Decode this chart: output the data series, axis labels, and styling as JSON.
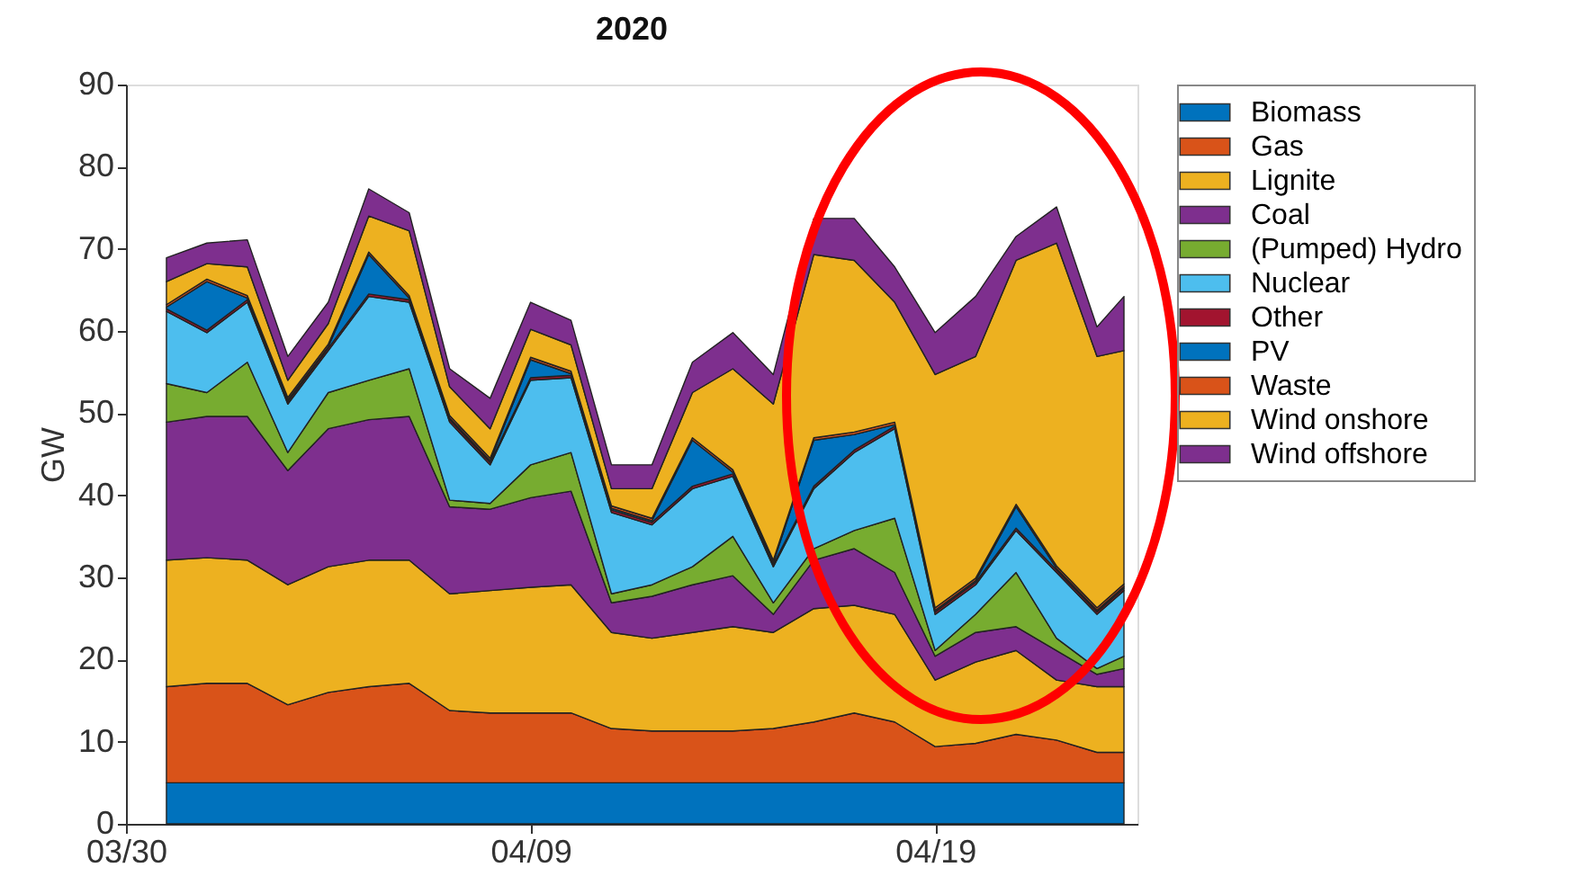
{
  "chart_data": {
    "type": "area",
    "title": "2020",
    "ylabel": "GW",
    "stacked": true,
    "legend": "top right",
    "grid": false,
    "x": [
      "2020-03-31",
      "2020-04-01",
      "2020-04-02",
      "2020-04-03",
      "2020-04-04",
      "2020-04-05",
      "2020-04-06",
      "2020-04-07",
      "2020-04-08",
      "2020-04-09",
      "2020-04-10",
      "2020-04-11",
      "2020-04-12",
      "2020-04-13",
      "2020-04-14",
      "2020-04-15",
      "2020-04-16",
      "2020-04-17",
      "2020-04-18",
      "2020-04-19",
      "2020-04-20",
      "2020-04-21",
      "2020-04-22",
      "2020-04-23",
      "2020-04-23T16:00"
    ],
    "xlim": [
      "2020-03-30",
      "2020-04-24"
    ],
    "xticks": [
      {
        "value": "2020-03-30",
        "label": "03/30"
      },
      {
        "value": "2020-04-09",
        "label": "04/09"
      },
      {
        "value": "2020-04-19",
        "label": "04/19"
      }
    ],
    "ylim": [
      0,
      90
    ],
    "yticks": [
      0,
      10,
      20,
      30,
      40,
      50,
      60,
      70,
      80,
      90
    ],
    "series": [
      {
        "name": "Biomass",
        "color": "#0072bd",
        "values": [
          5,
          5,
          5,
          5,
          5,
          5,
          5,
          5,
          5,
          5,
          5,
          5,
          5,
          5,
          5,
          5,
          5,
          5,
          5,
          5,
          5,
          5,
          5,
          5,
          5
        ]
      },
      {
        "name": "Gas",
        "color": "#d95319",
        "values": [
          11.7,
          12.1,
          12.1,
          9.5,
          11.0,
          11.7,
          12.1,
          8.8,
          8.5,
          8.5,
          8.5,
          6.6,
          6.3,
          6.3,
          6.3,
          6.6,
          7.4,
          8.5,
          7.4,
          4.4,
          4.8,
          5.9,
          5.2,
          3.7,
          3.7
        ]
      },
      {
        "name": "Lignite",
        "color": "#edb120",
        "values": [
          15.4,
          15.3,
          15.0,
          14.6,
          15.3,
          15.4,
          15.0,
          14.2,
          14.9,
          15.3,
          15.6,
          11.7,
          11.3,
          12.0,
          12.7,
          11.7,
          13.8,
          13.1,
          13.1,
          8.1,
          9.9,
          10.2,
          7.3,
          8.0,
          8.0
        ]
      },
      {
        "name": "Coal",
        "color": "#7e2f8e",
        "values": [
          16.8,
          17.2,
          17.5,
          13.9,
          16.8,
          17.1,
          17.5,
          10.6,
          9.9,
          10.9,
          11.4,
          3.6,
          5.1,
          5.8,
          6.2,
          2.2,
          5.9,
          6.9,
          5.1,
          2.9,
          3.6,
          2.9,
          3.6,
          1.5,
          2.2
        ]
      },
      {
        "name": "(Pumped) Hydro",
        "color": "#77ac30",
        "values": [
          4.7,
          2.9,
          6.6,
          2.2,
          4.4,
          4.8,
          5.8,
          0.8,
          0.7,
          4.0,
          4.7,
          1.1,
          1.4,
          2.2,
          4.8,
          1.4,
          1.4,
          2.2,
          6.6,
          0.7,
          2.2,
          6.6,
          1.5,
          0.7,
          1.5
        ]
      },
      {
        "name": "Nuclear",
        "color": "#4dbeee",
        "values": [
          8.8,
          7.3,
          7.3,
          5.9,
          5.1,
          10.2,
          8.1,
          9.5,
          4.7,
          10.3,
          9.1,
          9.9,
          7.3,
          9.5,
          7.3,
          4.4,
          7.3,
          9.5,
          10.9,
          4.4,
          3.6,
          5.1,
          8.0,
          6.6,
          8.0
        ]
      },
      {
        "name": "Other",
        "color": "#a2142f",
        "values": [
          0.3,
          0.3,
          0.3,
          0.3,
          0.3,
          0.3,
          0.3,
          0.3,
          0.3,
          0.3,
          0.3,
          0.3,
          0.3,
          0.3,
          0.3,
          0.3,
          0.3,
          0.3,
          0.3,
          0.3,
          0.3,
          0.3,
          0.3,
          0.3,
          0.3
        ]
      },
      {
        "name": "PV",
        "color": "#0072bd",
        "values": [
          0.2,
          5.9,
          0.2,
          0.2,
          0.2,
          4.8,
          0.2,
          0.2,
          0.2,
          2.2,
          0.2,
          0.2,
          0.2,
          5.6,
          0.2,
          0.2,
          5.6,
          1.9,
          0.2,
          0.2,
          0.2,
          2.6,
          0.2,
          0.2,
          0.2
        ]
      },
      {
        "name": "Waste",
        "color": "#d95319",
        "values": [
          0.3,
          0.3,
          0.3,
          0.3,
          0.3,
          0.3,
          0.3,
          0.3,
          0.3,
          0.3,
          0.3,
          0.3,
          0.3,
          0.3,
          0.3,
          0.3,
          0.3,
          0.3,
          0.3,
          0.3,
          0.3,
          0.3,
          0.3,
          0.3,
          0.3
        ]
      },
      {
        "name": "Wind onshore",
        "color": "#edb120",
        "values": [
          2.8,
          1.9,
          3.5,
          2.1,
          2.5,
          4.4,
          7.9,
          3.5,
          3.6,
          3.4,
          3.2,
          2.1,
          3.6,
          5.5,
          12.3,
          19.0,
          22.3,
          20.9,
          14.6,
          28.4,
          27.0,
          29.7,
          39.3,
          30.6,
          28.4
        ]
      },
      {
        "name": "Wind offshore",
        "color": "#7e2f8e",
        "values": [
          2.9,
          2.5,
          3.3,
          2.9,
          2.6,
          3.3,
          2.2,
          2.2,
          3.7,
          3.3,
          3.0,
          2.9,
          2.9,
          3.7,
          4.4,
          3.6,
          4.4,
          5.1,
          4.3,
          5.1,
          7.3,
          2.9,
          4.4,
          3.6,
          6.6
        ]
      }
    ]
  }
}
